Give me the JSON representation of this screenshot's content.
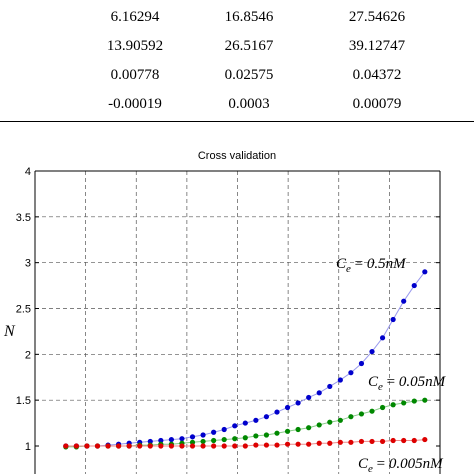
{
  "table": {
    "rows": [
      [
        "6.16294",
        "16.8546",
        "27.54626"
      ],
      [
        "13.90592",
        "26.5167",
        "39.12747"
      ],
      [
        "0.00778",
        "0.02575",
        "0.04372"
      ],
      [
        "-0.00019",
        "0.0003",
        "0.00079"
      ]
    ]
  },
  "chart_data": {
    "type": "scatter",
    "title": "Cross validation",
    "xlabel": "",
    "ylabel": "N",
    "x": [
      1,
      2,
      3,
      4,
      5,
      6,
      7,
      8,
      9,
      10,
      11,
      12,
      13,
      14,
      15,
      16,
      17,
      18,
      19,
      20,
      21,
      22,
      23,
      24,
      25,
      26,
      27,
      28,
      29,
      30,
      31,
      32,
      33,
      34,
      35
    ],
    "ylim": [
      1,
      4
    ],
    "yticks": [
      "1",
      "1.5",
      "2",
      "2.5",
      "3",
      "3.5",
      "4"
    ],
    "grid": true,
    "annotations": [
      "C_e = 0.5nM",
      "C_e = 0.05nM",
      "C_e = 0.005nM"
    ],
    "series": [
      {
        "color": "#0000cc",
        "fit_color": "#9999ee",
        "values": [
          1.0,
          1.0,
          1.0,
          1.0,
          1.01,
          1.02,
          1.03,
          1.04,
          1.05,
          1.06,
          1.07,
          1.08,
          1.1,
          1.12,
          1.15,
          1.18,
          1.22,
          1.25,
          1.28,
          1.32,
          1.37,
          1.42,
          1.47,
          1.53,
          1.58,
          1.65,
          1.72,
          1.8,
          1.9,
          2.03,
          2.18,
          2.38,
          2.58,
          2.75,
          2.9
        ]
      },
      {
        "color": "#008800",
        "fit_color": "#88cc88",
        "values": [
          0.99,
          0.99,
          1.0,
          1.0,
          1.0,
          1.0,
          1.0,
          1.01,
          1.01,
          1.02,
          1.02,
          1.03,
          1.04,
          1.05,
          1.06,
          1.07,
          1.08,
          1.09,
          1.11,
          1.12,
          1.14,
          1.16,
          1.18,
          1.2,
          1.23,
          1.26,
          1.28,
          1.32,
          1.35,
          1.38,
          1.42,
          1.45,
          1.47,
          1.49,
          1.5
        ]
      },
      {
        "color": "#dd0000",
        "fit_color": "#ee8888",
        "values": [
          1.0,
          1.0,
          1.0,
          1.0,
          1.0,
          1.0,
          1.0,
          1.0,
          1.0,
          1.0,
          1.0,
          1.0,
          1.0,
          1.0,
          1.0,
          1.0,
          1.0,
          1.0,
          1.01,
          1.01,
          1.01,
          1.02,
          1.02,
          1.02,
          1.03,
          1.03,
          1.04,
          1.04,
          1.05,
          1.05,
          1.05,
          1.06,
          1.06,
          1.06,
          1.07
        ]
      }
    ]
  }
}
